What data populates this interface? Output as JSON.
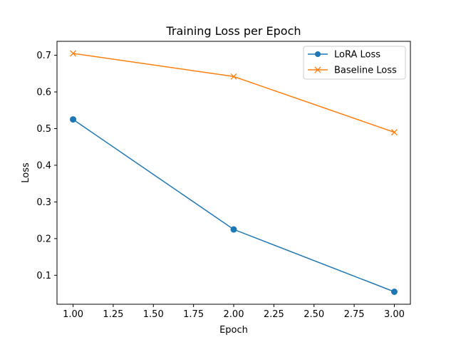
{
  "chart_data": {
    "type": "line",
    "title": "Training Loss per Epoch",
    "xlabel": "Epoch",
    "ylabel": "Loss",
    "xlim": [
      0.9,
      3.1
    ],
    "ylim": [
      0.021,
      0.738
    ],
    "xticks": [
      1.0,
      1.25,
      1.5,
      1.75,
      2.0,
      2.25,
      2.5,
      2.75,
      3.0
    ],
    "xtick_labels": [
      "1.00",
      "1.25",
      "1.50",
      "1.75",
      "2.00",
      "2.25",
      "2.50",
      "2.75",
      "3.00"
    ],
    "yticks": [
      0.1,
      0.2,
      0.3,
      0.4,
      0.5,
      0.6,
      0.7
    ],
    "ytick_labels": [
      "0.1",
      "0.2",
      "0.3",
      "0.4",
      "0.5",
      "0.6",
      "0.7"
    ],
    "grid": false,
    "legend_position": "top-right",
    "series": [
      {
        "name": "LoRA Loss",
        "color": "#1f77b4",
        "marker": "circle",
        "x": [
          1,
          2,
          3
        ],
        "y": [
          0.525,
          0.225,
          0.055
        ]
      },
      {
        "name": "Baseline Loss",
        "color": "#ff7f0e",
        "marker": "x",
        "x": [
          1,
          2,
          3
        ],
        "y": [
          0.705,
          0.642,
          0.49
        ]
      }
    ]
  }
}
